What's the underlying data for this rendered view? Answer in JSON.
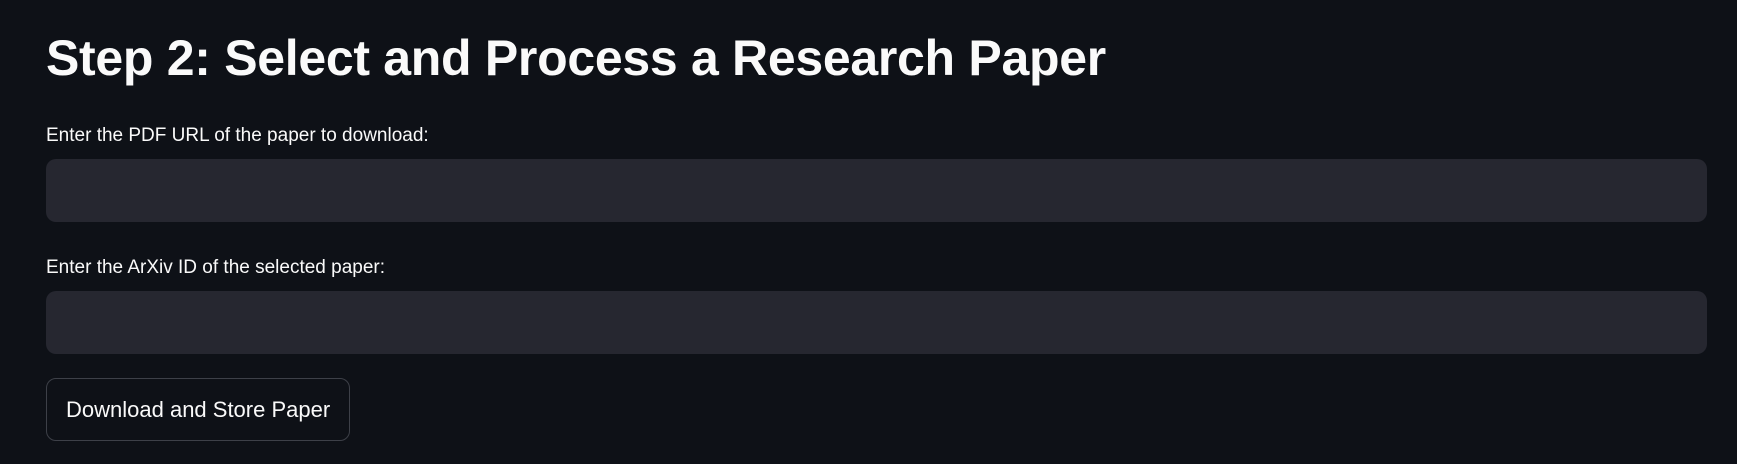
{
  "page": {
    "title": "Step 2: Select and Process a Research Paper"
  },
  "form": {
    "pdf_url": {
      "label": "Enter the PDF URL of the paper to download:",
      "value": "",
      "placeholder": ""
    },
    "arxiv_id": {
      "label": "Enter the ArXiv ID of the selected paper:",
      "value": "",
      "placeholder": ""
    },
    "submit_label": "Download and Store Paper"
  },
  "colors": {
    "background": "#0e1117",
    "input_background": "#262730",
    "text": "#fafafa",
    "button_border": "#3d4048"
  }
}
